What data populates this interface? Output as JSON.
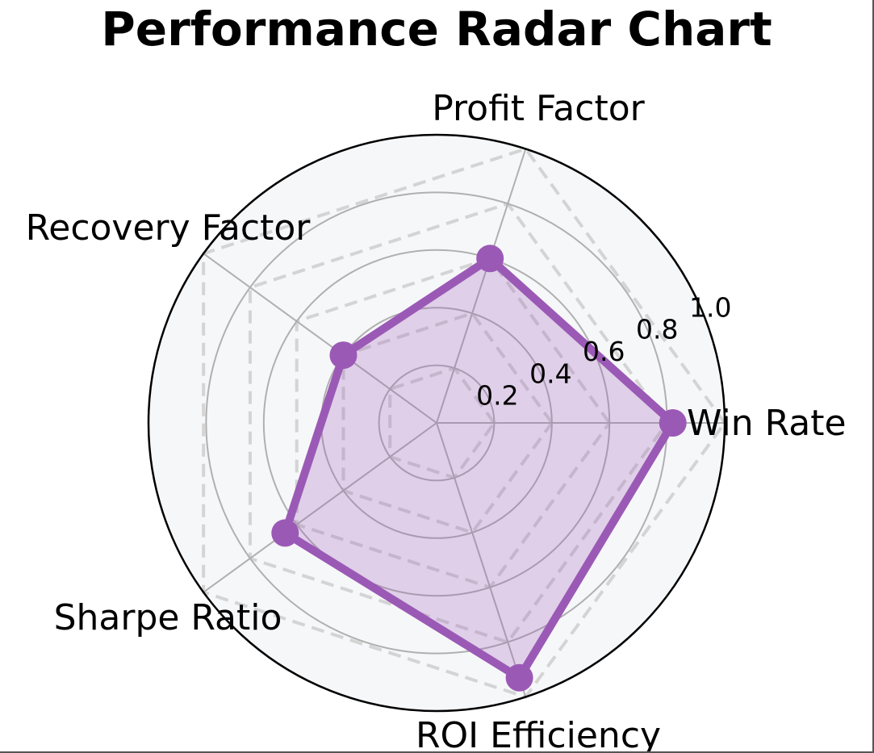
{
  "chart_data": {
    "type": "radar",
    "title": "Performance Radar Chart",
    "axes": [
      "Win Rate",
      "Profit Factor",
      "Recovery Factor",
      "Sharpe Ratio",
      "ROI Efficiency"
    ],
    "radial_ticks": [
      "0.2",
      "0.4",
      "0.6",
      "0.8",
      "1.0"
    ],
    "radial_tick_values": [
      0.2,
      0.4,
      0.6,
      0.8,
      1.0
    ],
    "rlim": [
      0,
      1.0
    ],
    "grid": true,
    "series": [
      {
        "values": [
          0.82,
          0.6,
          0.4,
          0.65,
          0.93
        ]
      }
    ],
    "reference_polygons": [
      0.2,
      0.4,
      0.6,
      0.8,
      1.0
    ],
    "colors": {
      "series": "#9b59b6",
      "series_fill": "#9b59b6",
      "plot_background": "#f6f7f9",
      "grid": "#b0b0b0",
      "reference": "#d4d4d4",
      "frame": "#000000"
    }
  }
}
